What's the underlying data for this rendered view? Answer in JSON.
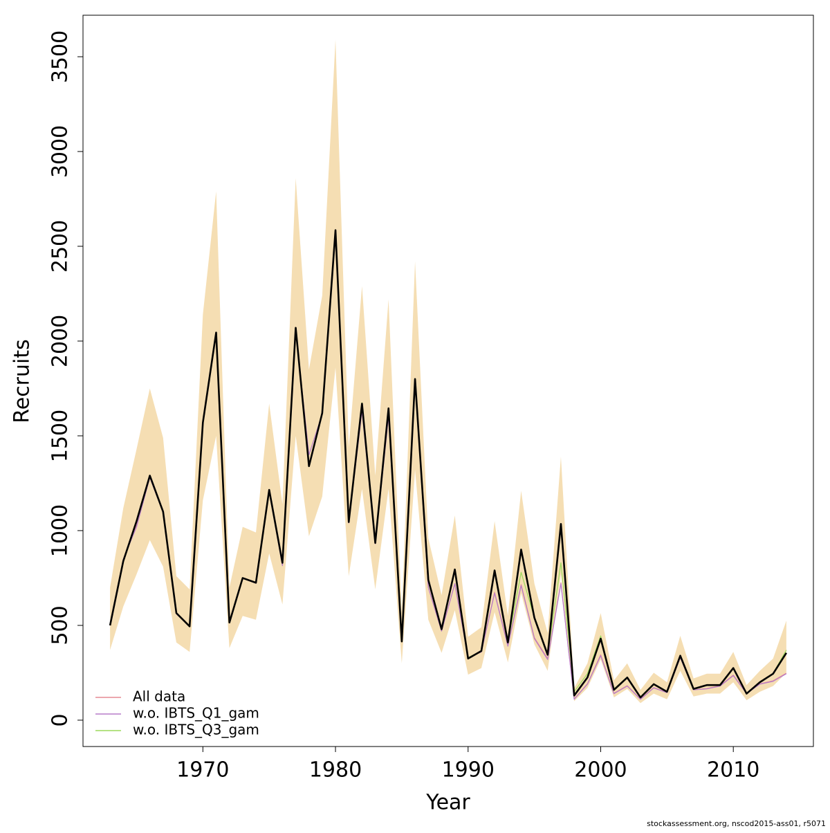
{
  "chart_data": {
    "type": "line",
    "x_label": "Year",
    "y_label": "Recruits",
    "footer": "stockassessment.org, nscod2015-ass01, r5071",
    "x": [
      1963,
      1964,
      1965,
      1966,
      1967,
      1968,
      1969,
      1970,
      1971,
      1972,
      1973,
      1974,
      1975,
      1976,
      1977,
      1978,
      1979,
      1980,
      1981,
      1982,
      1983,
      1984,
      1985,
      1986,
      1987,
      1988,
      1989,
      1990,
      1991,
      1992,
      1993,
      1994,
      1995,
      1996,
      1997,
      1998,
      1999,
      2000,
      2001,
      2002,
      2003,
      2004,
      2005,
      2006,
      2007,
      2008,
      2009,
      2010,
      2011,
      2012,
      2013,
      2014
    ],
    "band": {
      "color": "#f5deb3",
      "upper": [
        700,
        1120,
        1430,
        1750,
        1490,
        760,
        690,
        2140,
        2790,
        700,
        1020,
        990,
        1670,
        1140,
        2860,
        1850,
        2240,
        3590,
        1440,
        2290,
        1290,
        2220,
        570,
        2420,
        960,
        660,
        1080,
        440,
        490,
        1050,
        550,
        1210,
        720,
        460,
        1390,
        170,
        300,
        565,
        210,
        300,
        160,
        250,
        200,
        445,
        220,
        245,
        245,
        360,
        185,
        260,
        325,
        525
      ],
      "lower": [
        370,
        600,
        770,
        950,
        810,
        410,
        360,
        1160,
        1500,
        380,
        550,
        530,
        880,
        610,
        1500,
        970,
        1180,
        1860,
        760,
        1220,
        690,
        1220,
        300,
        1320,
        530,
        355,
        580,
        240,
        275,
        570,
        305,
        670,
        400,
        260,
        770,
        100,
        170,
        320,
        120,
        165,
        90,
        140,
        110,
        260,
        125,
        140,
        140,
        200,
        105,
        150,
        180,
        250
      ]
    },
    "series": [
      {
        "name": "All data",
        "color": "#e58a93",
        "width": 1.2,
        "values": [
          500,
          845,
          1030,
          1285,
          1100,
          565,
          495,
          1565,
          2040,
          515,
          750,
          725,
          1210,
          820,
          2065,
          1350,
          1620,
          2580,
          1045,
          1665,
          935,
          1640,
          420,
          1795,
          700,
          470,
          720,
          330,
          360,
          675,
          395,
          715,
          435,
          325,
          725,
          112,
          192,
          345,
          142,
          182,
          112,
          172,
          147,
          332,
          160,
          167,
          182,
          238,
          142,
          192,
          208,
          248
        ]
      },
      {
        "name": "w.o. IBTS_Q1_gam",
        "color": "#b57cc9",
        "width": 1.2,
        "values": [
          500,
          850,
          1020,
          1280,
          1095,
          560,
          495,
          1560,
          2035,
          515,
          748,
          722,
          1205,
          815,
          2060,
          1400,
          1615,
          2575,
          1040,
          1630,
          930,
          1600,
          425,
          1790,
          700,
          470,
          720,
          330,
          360,
          670,
          390,
          710,
          430,
          320,
          720,
          110,
          190,
          340,
          140,
          180,
          110,
          170,
          145,
          330,
          160,
          165,
          180,
          235,
          140,
          190,
          205,
          245
        ]
      },
      {
        "name": "w.o. IBTS_Q3_gam",
        "color": "#9bd95c",
        "width": 1.2,
        "values": [
          500,
          840,
          1050,
          1290,
          1100,
          565,
          495,
          1560,
          2045,
          515,
          750,
          725,
          1215,
          830,
          2070,
          1340,
          1620,
          2585,
          1045,
          1675,
          935,
          1645,
          450,
          1800,
          740,
          480,
          795,
          330,
          365,
          790,
          410,
          780,
          540,
          345,
          830,
          150,
          245,
          445,
          165,
          228,
          122,
          192,
          152,
          342,
          167,
          187,
          187,
          277,
          142,
          202,
          247,
          370
        ]
      },
      {
        "color": "#000000",
        "width": 2.6,
        "values": [
          500,
          840,
          1050,
          1290,
          1100,
          565,
          495,
          1570,
          2045,
          515,
          750,
          725,
          1215,
          830,
          2070,
          1340,
          1620,
          2585,
          1045,
          1670,
          935,
          1645,
          415,
          1800,
          740,
          480,
          795,
          325,
          365,
          790,
          410,
          900,
          540,
          345,
          1035,
          130,
          225,
          430,
          160,
          225,
          120,
          190,
          150,
          340,
          165,
          185,
          185,
          275,
          140,
          200,
          245,
          355
        ]
      }
    ],
    "xlim": [
      1960.96,
      2016.04
    ],
    "ylim": [
      -139,
      3719
    ],
    "xticks": [
      1970,
      1980,
      1990,
      2000,
      2010
    ],
    "yticks": [
      0,
      500,
      1000,
      1500,
      2000,
      2500,
      3000,
      3500
    ],
    "legend": "bottom-left"
  }
}
